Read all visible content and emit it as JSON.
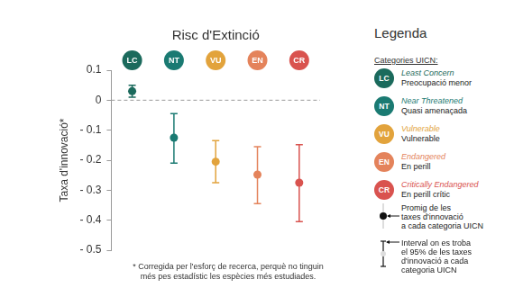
{
  "chart_data": {
    "type": "dot",
    "title": "Risc d'Extinció",
    "y_label": "Taxa d'innovació*",
    "categories": [
      "LC",
      "NT",
      "VU",
      "EN",
      "CR"
    ],
    "values": [
      0.03,
      -0.125,
      -0.205,
      -0.248,
      -0.275
    ],
    "ci_low": [
      0.01,
      -0.21,
      -0.275,
      -0.345,
      -0.405
    ],
    "ci_high": [
      0.05,
      -0.045,
      -0.135,
      -0.155,
      -0.148
    ],
    "colors": [
      "#1b6a5c",
      "#1a7a72",
      "#e2a33c",
      "#e4835b",
      "#d9534f"
    ],
    "ylim": [
      -0.5,
      0.1
    ],
    "yticks": [
      {
        "value": -0.5,
        "label": "- 0.5"
      },
      {
        "value": -0.4,
        "label": "- 0.4"
      },
      {
        "value": -0.3,
        "label": "- 0.3"
      },
      {
        "value": -0.2,
        "label": "- 0.2"
      },
      {
        "value": -0.1,
        "label": "- 0.1"
      },
      0,
      0.1
    ],
    "reference_line": 0,
    "grid": false,
    "tick_labels": "y",
    "legend": "right",
    "legend_title": "Legenda",
    "legend_subtitle": "Categories UICN:",
    "category_names_en": [
      "Least Concern",
      "Near Threatened",
      "Vulnerable",
      "Endangered",
      "Critically Endangered"
    ],
    "category_names_ca": [
      "Preocupació menor",
      "Quasi amenaçada",
      "Vulnerable",
      "En perill",
      "En perill crític"
    ],
    "mean_note": "Promig de les\ntaxes d'innovació\na cada categoria UICN",
    "interval_note": "Interval on es troba\nel 95% de les taxes\nd'innovació a cada\ncategoria UICN",
    "footnote": "* Corregida per l'esforç de recerca, perquè no tinguin\nmés pes estadístic les espècies més estudiades."
  }
}
